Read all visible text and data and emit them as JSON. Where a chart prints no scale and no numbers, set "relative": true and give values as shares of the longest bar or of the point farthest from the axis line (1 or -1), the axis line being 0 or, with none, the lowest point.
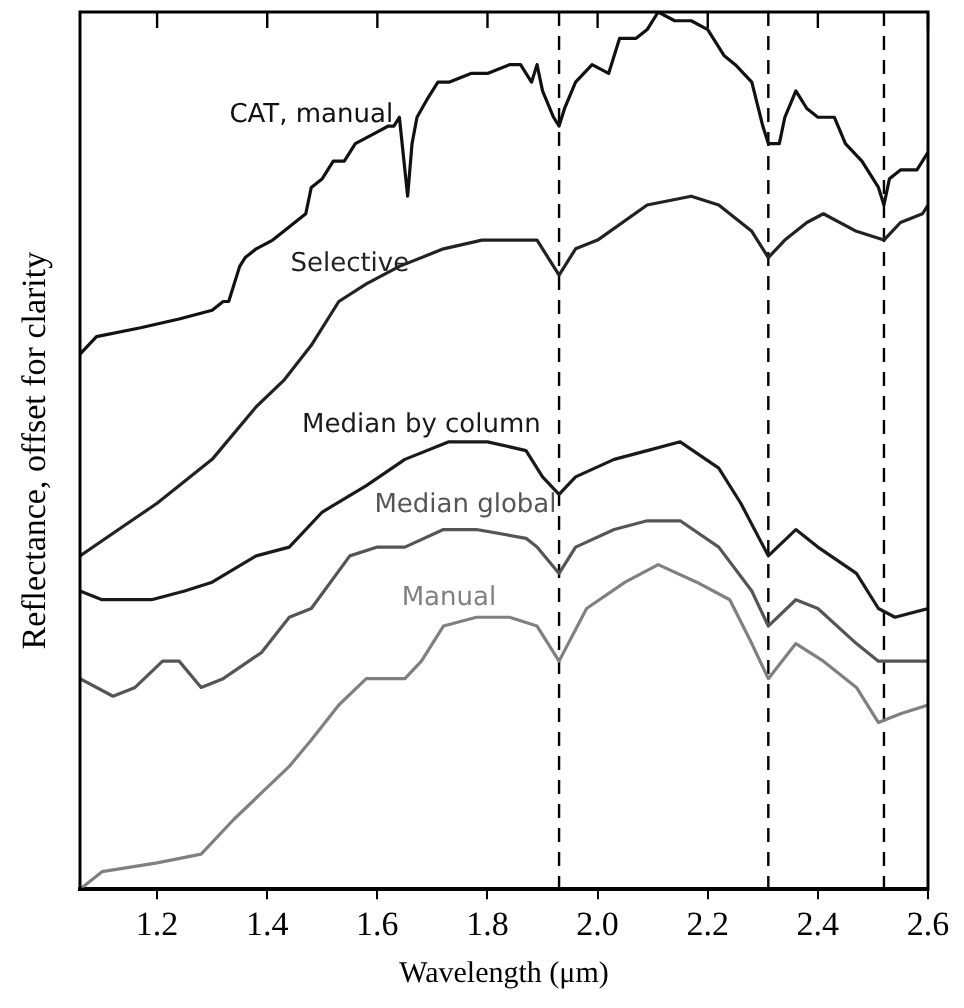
{
  "chart_data": {
    "type": "line",
    "xlabel": "Wavelength (μm)",
    "ylabel": "Reflectance, offset for clarity",
    "relative": true,
    "xlim": [
      1.06,
      2.6
    ],
    "xticks": [
      {
        "value": 1.2,
        "label": "1.2"
      },
      {
        "value": 1.4,
        "label": "1.4"
      },
      {
        "value": 1.6,
        "label": "1.6"
      },
      {
        "value": 1.8,
        "label": "1.8"
      },
      {
        "value": 2.0,
        "label": "2.0"
      },
      {
        "value": 2.2,
        "label": "2.2"
      },
      {
        "value": 2.4,
        "label": "2.4"
      },
      {
        "value": 2.6,
        "label": "2.6"
      }
    ],
    "grid": false,
    "legend": false,
    "marker": "none",
    "line_style": "solid",
    "ref_lines": [
      {
        "axis": "x",
        "value": 1.93,
        "line_style": "dashed",
        "color": "#000000"
      },
      {
        "axis": "x",
        "value": 2.31,
        "line_style": "dashed",
        "color": "#000000"
      },
      {
        "axis": "x",
        "value": 2.52,
        "line_style": "dashed",
        "color": "#000000"
      }
    ],
    "series": [
      {
        "name": "CAT, manual",
        "color": "#111111",
        "x": [
          1.06,
          1.09,
          1.17,
          1.24,
          1.3,
          1.32,
          1.33,
          1.35,
          1.36,
          1.38,
          1.41,
          1.45,
          1.47,
          1.48,
          1.5,
          1.52,
          1.54,
          1.56,
          1.59,
          1.62,
          1.63,
          1.64,
          1.655,
          1.663,
          1.672,
          1.69,
          1.71,
          1.73,
          1.77,
          1.8,
          1.84,
          1.86,
          1.88,
          1.89,
          1.9,
          1.92,
          1.93,
          1.94,
          1.96,
          1.99,
          2.02,
          2.04,
          2.07,
          2.09,
          2.11,
          2.14,
          2.17,
          2.2,
          2.23,
          2.25,
          2.28,
          2.3,
          2.31,
          2.33,
          2.34,
          2.36,
          2.38,
          2.4,
          2.43,
          2.45,
          2.48,
          2.49,
          2.51,
          2.52,
          2.53,
          2.55,
          2.58,
          2.6
        ],
        "values": [
          0.61,
          0.63,
          0.64,
          0.65,
          0.66,
          0.67,
          0.67,
          0.71,
          0.72,
          0.73,
          0.74,
          0.76,
          0.77,
          0.8,
          0.81,
          0.83,
          0.83,
          0.85,
          0.86,
          0.87,
          0.87,
          0.88,
          0.79,
          0.85,
          0.88,
          0.9,
          0.92,
          0.92,
          0.93,
          0.93,
          0.94,
          0.94,
          0.92,
          0.94,
          0.91,
          0.88,
          0.87,
          0.89,
          0.92,
          0.94,
          0.93,
          0.97,
          0.97,
          0.98,
          1.0,
          0.99,
          0.99,
          0.98,
          0.95,
          0.94,
          0.92,
          0.87,
          0.85,
          0.85,
          0.88,
          0.91,
          0.89,
          0.88,
          0.88,
          0.85,
          0.83,
          0.82,
          0.8,
          0.78,
          0.81,
          0.82,
          0.82,
          0.84
        ]
      },
      {
        "name": "Selective",
        "color": "#222222",
        "x": [
          1.06,
          1.13,
          1.2,
          1.3,
          1.38,
          1.43,
          1.48,
          1.53,
          1.58,
          1.64,
          1.72,
          1.79,
          1.85,
          1.89,
          1.93,
          1.96,
          2.0,
          2.09,
          2.17,
          2.22,
          2.28,
          2.31,
          2.34,
          2.38,
          2.41,
          2.47,
          2.52,
          2.55,
          2.59,
          2.6
        ],
        "values": [
          0.38,
          0.41,
          0.44,
          0.49,
          0.55,
          0.58,
          0.62,
          0.67,
          0.69,
          0.71,
          0.73,
          0.74,
          0.74,
          0.74,
          0.7,
          0.73,
          0.74,
          0.78,
          0.79,
          0.78,
          0.75,
          0.72,
          0.74,
          0.76,
          0.77,
          0.75,
          0.74,
          0.76,
          0.77,
          0.78
        ]
      },
      {
        "name": "Median by column",
        "color": "#1a1a1a",
        "x": [
          1.06,
          1.1,
          1.19,
          1.25,
          1.3,
          1.38,
          1.44,
          1.5,
          1.58,
          1.65,
          1.73,
          1.8,
          1.87,
          1.9,
          1.93,
          1.96,
          2.03,
          2.09,
          2.15,
          2.22,
          2.26,
          2.31,
          2.36,
          2.4,
          2.47,
          2.51,
          2.54,
          2.6
        ],
        "values": [
          0.34,
          0.33,
          0.33,
          0.34,
          0.35,
          0.38,
          0.39,
          0.43,
          0.46,
          0.49,
          0.51,
          0.51,
          0.5,
          0.47,
          0.45,
          0.47,
          0.49,
          0.5,
          0.51,
          0.48,
          0.44,
          0.38,
          0.41,
          0.39,
          0.36,
          0.32,
          0.31,
          0.32
        ]
      },
      {
        "name": "Median global",
        "color": "#555555",
        "x": [
          1.06,
          1.12,
          1.16,
          1.21,
          1.24,
          1.28,
          1.32,
          1.39,
          1.44,
          1.48,
          1.55,
          1.6,
          1.65,
          1.72,
          1.78,
          1.87,
          1.89,
          1.93,
          1.96,
          2.03,
          2.09,
          2.15,
          2.22,
          2.28,
          2.31,
          2.36,
          2.4,
          2.47,
          2.51,
          2.55,
          2.6
        ],
        "values": [
          0.24,
          0.22,
          0.23,
          0.26,
          0.26,
          0.23,
          0.24,
          0.27,
          0.31,
          0.32,
          0.38,
          0.39,
          0.39,
          0.41,
          0.41,
          0.4,
          0.39,
          0.36,
          0.39,
          0.41,
          0.42,
          0.42,
          0.39,
          0.34,
          0.3,
          0.33,
          0.32,
          0.28,
          0.26,
          0.26,
          0.26
        ]
      },
      {
        "name": "Manual",
        "color": "#808080",
        "x": [
          1.06,
          1.1,
          1.2,
          1.28,
          1.34,
          1.39,
          1.44,
          1.48,
          1.53,
          1.58,
          1.65,
          1.68,
          1.72,
          1.78,
          1.84,
          1.89,
          1.93,
          1.98,
          2.05,
          2.11,
          2.18,
          2.24,
          2.28,
          2.31,
          2.36,
          2.41,
          2.47,
          2.51,
          2.55,
          2.6
        ],
        "values": [
          0.0,
          0.02,
          0.03,
          0.04,
          0.08,
          0.11,
          0.14,
          0.17,
          0.21,
          0.24,
          0.24,
          0.26,
          0.3,
          0.31,
          0.31,
          0.3,
          0.26,
          0.32,
          0.35,
          0.37,
          0.35,
          0.33,
          0.28,
          0.24,
          0.28,
          0.26,
          0.23,
          0.19,
          0.2,
          0.21
        ]
      }
    ]
  }
}
